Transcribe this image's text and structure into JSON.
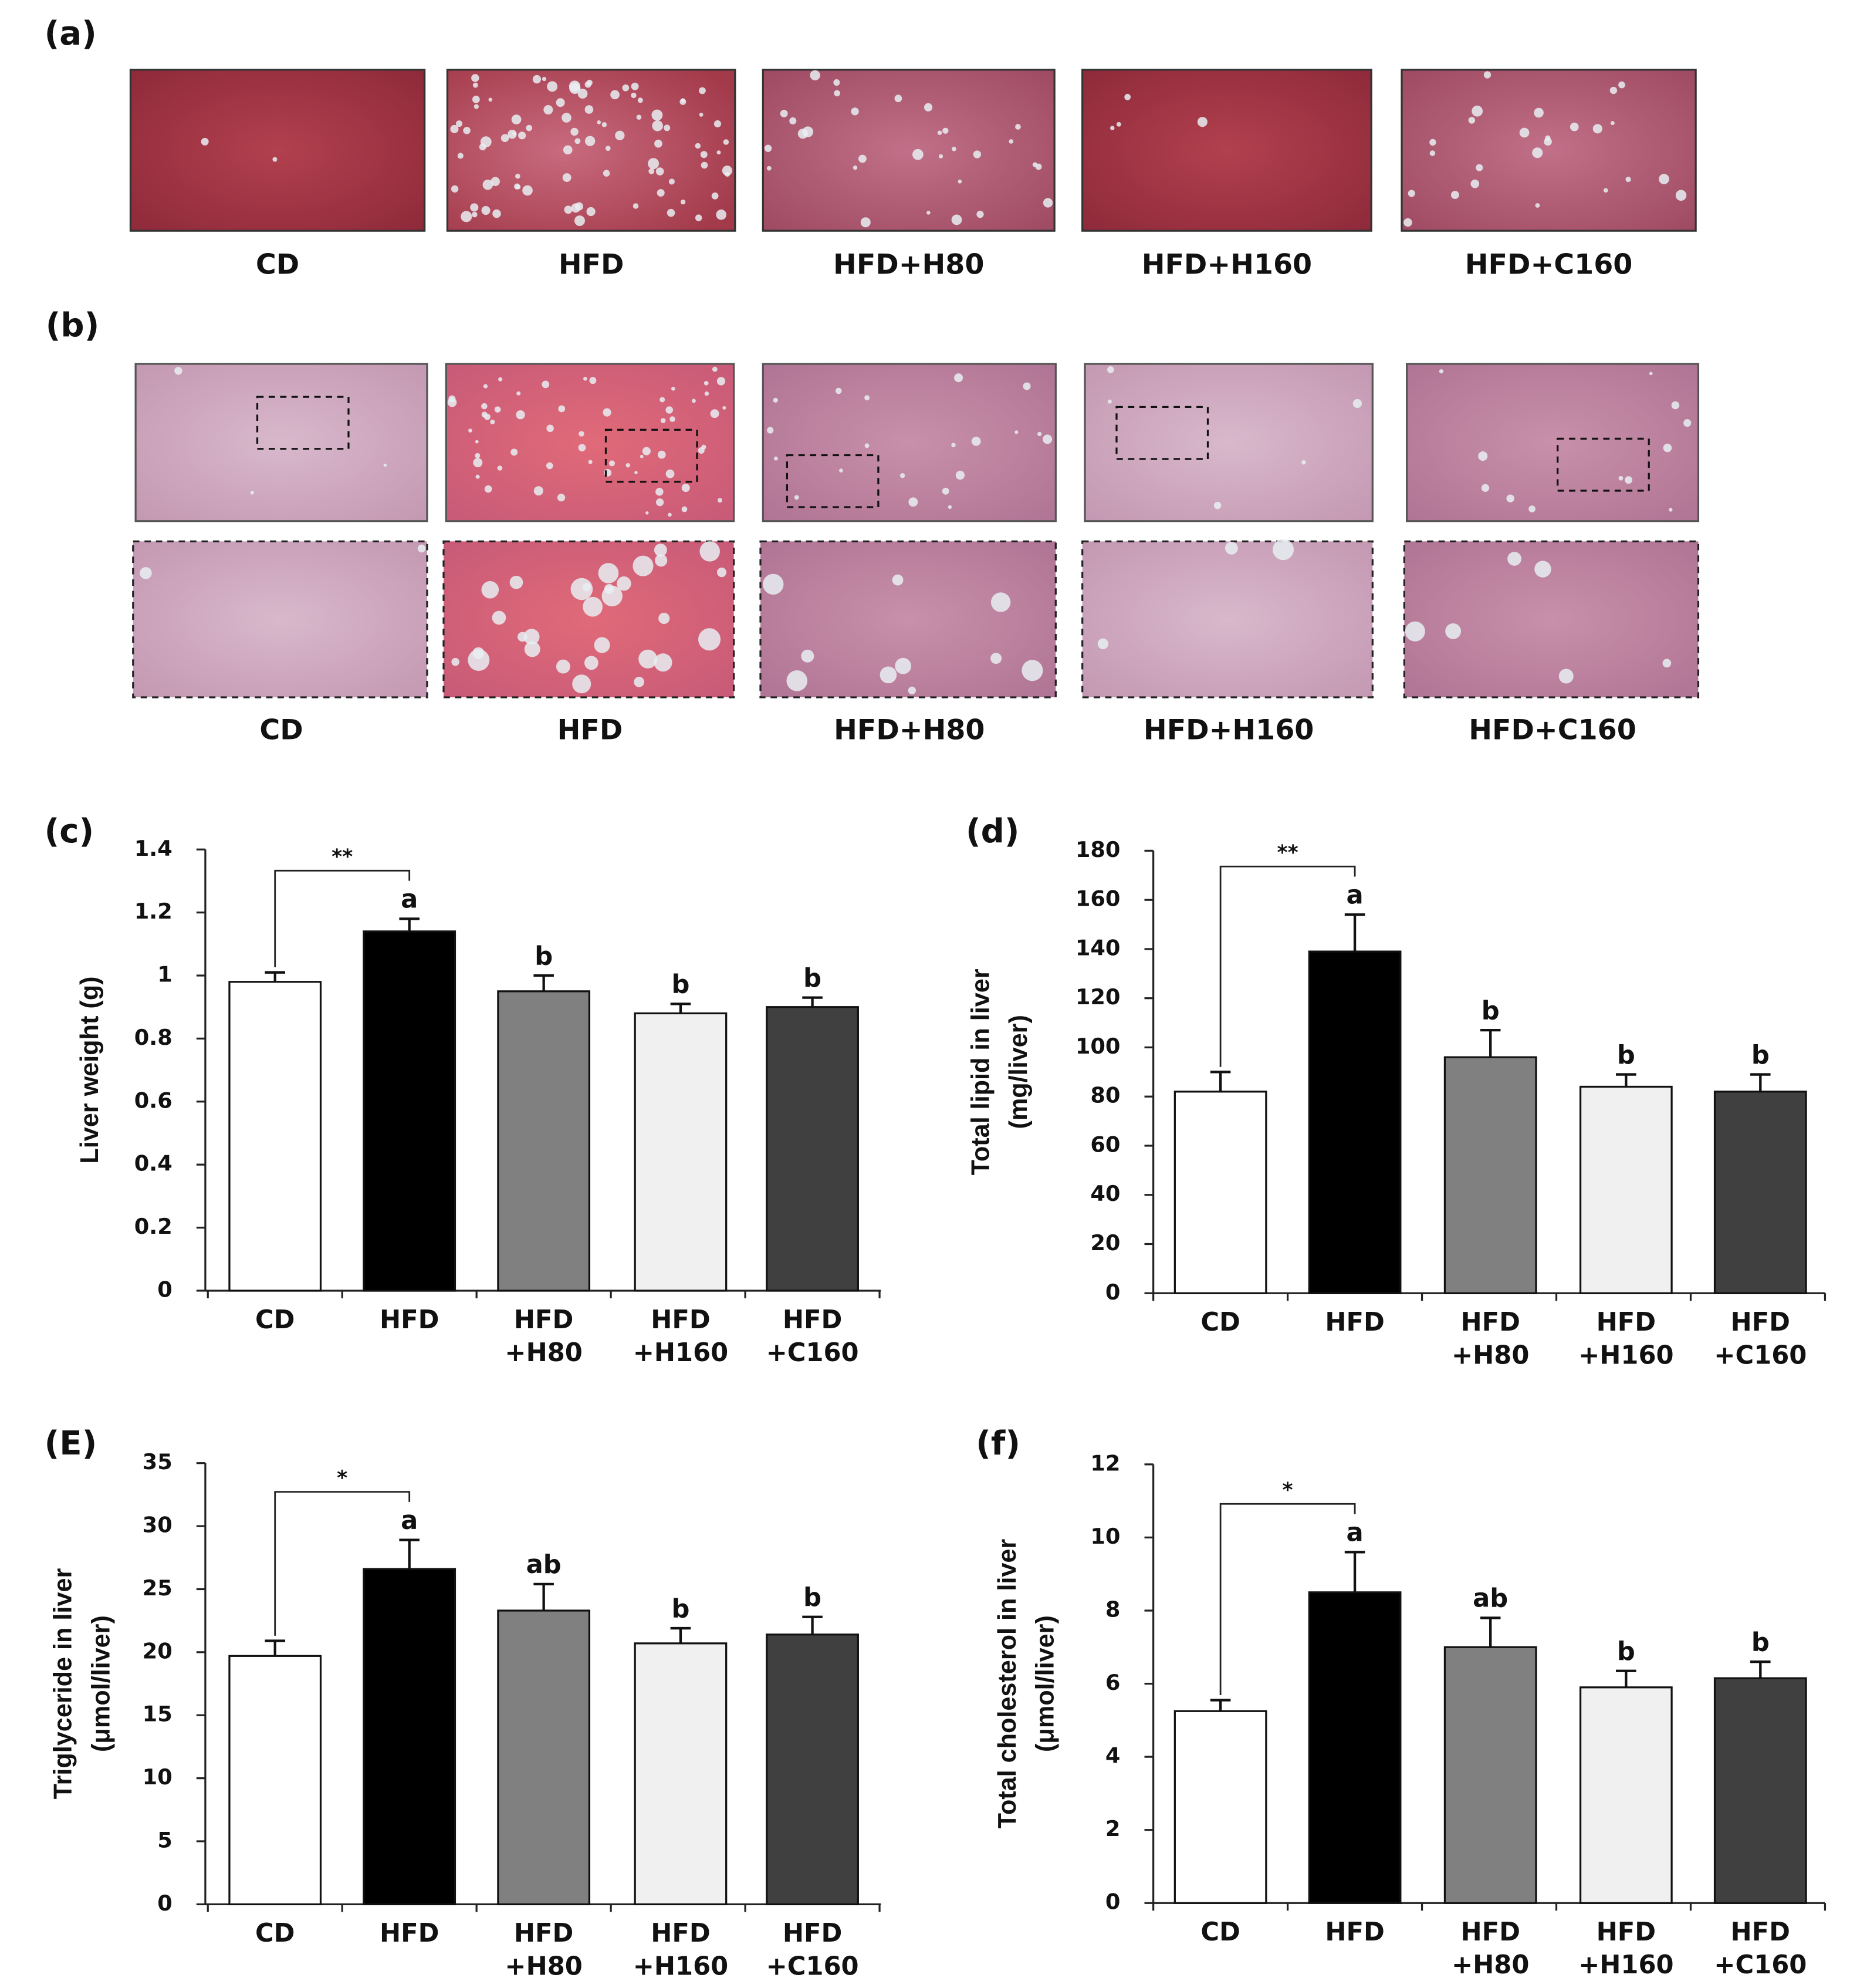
{
  "panels": {
    "a": {
      "label": "(a)",
      "captions": [
        "CD",
        "HFD",
        "HFD+H80",
        "HFD+H160",
        "HFD+C160"
      ]
    },
    "b": {
      "label": "(b)",
      "captions": [
        "CD",
        "HFD",
        "HFD+H80",
        "HFD+H160",
        "HFD+C160"
      ]
    }
  },
  "chart_data": [
    {
      "type": "bar",
      "panel_label": "(c)",
      "ylabel": [
        "Liver weight (g)"
      ],
      "categories": [
        "CD",
        "HFD",
        "HFD\n+H80",
        "HFD\n+H160",
        "HFD\n+C160"
      ],
      "values": [
        0.98,
        1.14,
        0.95,
        0.88,
        0.9
      ],
      "errors": [
        0.03,
        0.04,
        0.05,
        0.03,
        0.03
      ],
      "letters": [
        null,
        "a",
        "b",
        "b",
        "b"
      ],
      "bracket_label": "**",
      "colors": [
        "#ffffff",
        "#000000",
        "#808080",
        "#f0f0f0",
        "#404040"
      ],
      "ylim": [
        0,
        1.4
      ],
      "yticks": [
        0,
        0.2,
        0.4,
        0.6,
        0.8,
        1,
        1.2,
        1.4
      ]
    },
    {
      "type": "bar",
      "panel_label": "(d)",
      "ylabel": [
        "Total lipid in liver",
        "(mg/liver)"
      ],
      "categories": [
        "CD",
        "HFD",
        "HFD\n+H80",
        "HFD\n+H160",
        "HFD\n+C160"
      ],
      "values": [
        82,
        139,
        96,
        84,
        82
      ],
      "errors": [
        8,
        15,
        11,
        5,
        7
      ],
      "letters": [
        null,
        "a",
        "b",
        "b",
        "b"
      ],
      "bracket_label": "**",
      "colors": [
        "#ffffff",
        "#000000",
        "#808080",
        "#f0f0f0",
        "#404040"
      ],
      "ylim": [
        0,
        180
      ],
      "yticks": [
        0,
        20,
        40,
        60,
        80,
        100,
        120,
        140,
        160,
        180
      ]
    },
    {
      "type": "bar",
      "panel_label": "(E)",
      "ylabel": [
        "Triglyceride in liver",
        "(μmol/liver)"
      ],
      "categories": [
        "CD",
        "HFD",
        "HFD\n+H80",
        "HFD\n+H160",
        "HFD\n+C160"
      ],
      "values": [
        19.7,
        26.6,
        23.3,
        20.7,
        21.4
      ],
      "errors": [
        1.2,
        2.3,
        2.1,
        1.2,
        1.4
      ],
      "letters": [
        null,
        "a",
        "ab",
        "b",
        "b"
      ],
      "bracket_label": "*",
      "colors": [
        "#ffffff",
        "#000000",
        "#808080",
        "#f0f0f0",
        "#404040"
      ],
      "ylim": [
        0,
        35
      ],
      "yticks": [
        0,
        5,
        10,
        15,
        20,
        25,
        30,
        35
      ]
    },
    {
      "type": "bar",
      "panel_label": "(f)",
      "ylabel": [
        "Total cholesterol in liver",
        "(μmol/liver)"
      ],
      "categories": [
        "CD",
        "HFD",
        "HFD\n+H80",
        "HFD\n+H160",
        "HFD\n+C160"
      ],
      "values": [
        5.25,
        8.5,
        7.0,
        5.9,
        6.15
      ],
      "errors": [
        0.3,
        1.1,
        0.8,
        0.45,
        0.45
      ],
      "letters": [
        null,
        "a",
        "ab",
        "b",
        "b"
      ],
      "bracket_label": "*",
      "colors": [
        "#ffffff",
        "#000000",
        "#808080",
        "#f0f0f0",
        "#404040"
      ],
      "ylim": [
        0,
        12
      ],
      "yticks": [
        0,
        2,
        4,
        6,
        8,
        10,
        12
      ]
    }
  ]
}
